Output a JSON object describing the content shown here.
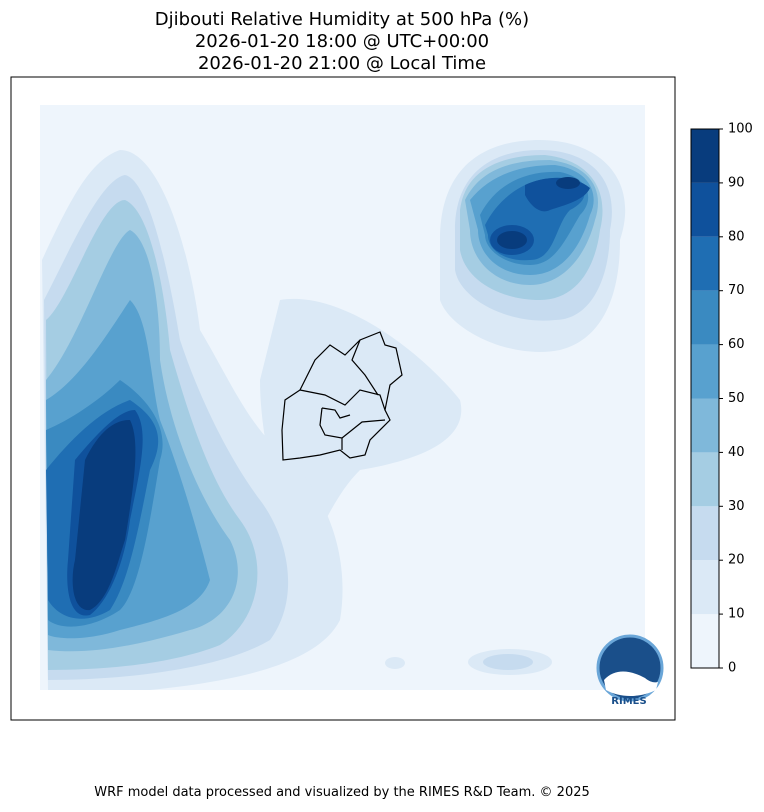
{
  "title": [
    "Djibouti Relative Humidity at 500 hPa (%)",
    "2026-01-20 18:00 @ UTC+00:00",
    "2026-01-20 21:00 @ Local Time"
  ],
  "colorbar": {
    "ticks": [
      0,
      10,
      20,
      30,
      40,
      50,
      60,
      70,
      80,
      90,
      100
    ],
    "colors": [
      "#eef5fc",
      "#dbe9f6",
      "#c6dbef",
      "#a5cde3",
      "#7fb8da",
      "#58a1cf",
      "#3a8ac1",
      "#1f6eb3",
      "#0f519c",
      "#083c7d"
    ]
  },
  "logo": "RIMES",
  "footer": "WRF model data processed and visualized by the RIMES R&D Team. © 2025"
}
